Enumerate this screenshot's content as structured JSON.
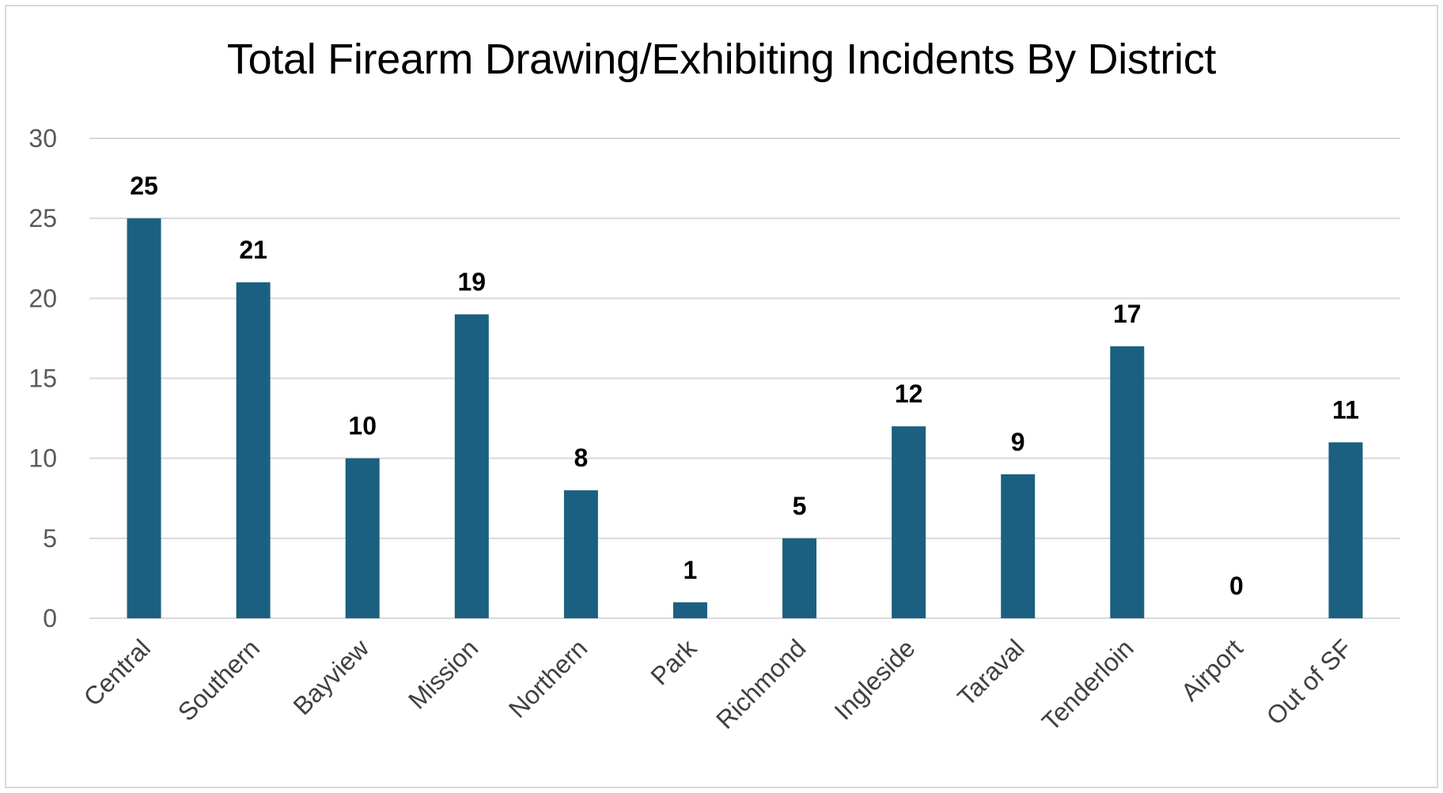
{
  "chart_data": {
    "type": "bar",
    "title": "Total Firearm Drawing/Exhibiting Incidents By District",
    "categories": [
      "Central",
      "Southern",
      "Bayview",
      "Mission",
      "Northern",
      "Park",
      "Richmond",
      "Ingleside",
      "Taraval",
      "Tenderloin",
      "Airport",
      "Out of SF"
    ],
    "values": [
      25,
      21,
      10,
      19,
      8,
      1,
      5,
      12,
      9,
      17,
      0,
      11
    ],
    "xlabel": "",
    "ylabel": "",
    "ylim": [
      0,
      30
    ],
    "yticks": [
      0,
      5,
      10,
      15,
      20,
      25,
      30
    ],
    "grid": true,
    "legend": "none",
    "data_labels": true,
    "colors": {
      "bar": "#1b6080",
      "gridline": "#d9d9d9",
      "border": "#d9d9d9"
    }
  }
}
